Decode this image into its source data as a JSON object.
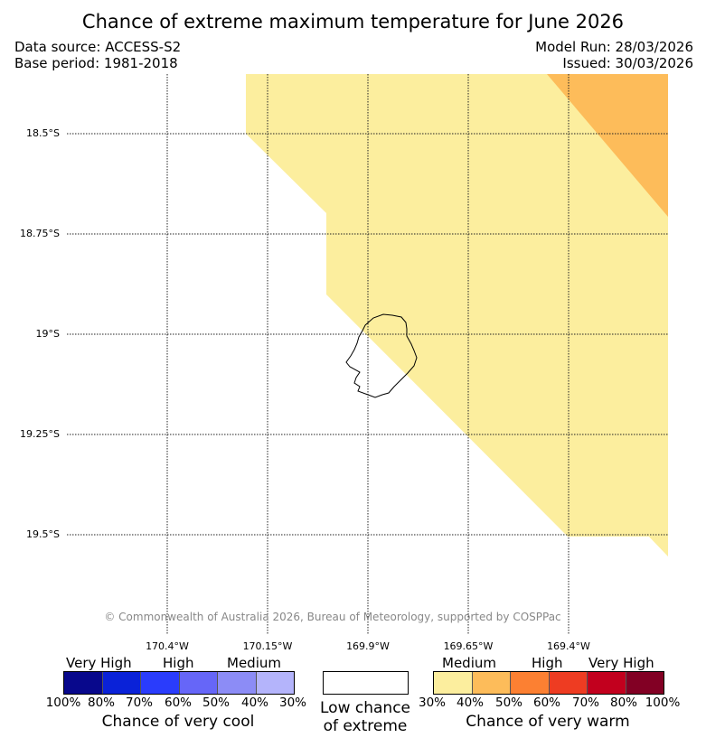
{
  "title": "Chance of extreme maximum temperature for June 2026",
  "data_source": "Data source: ACCESS-S2",
  "base_period": "Base period: 1981-2018",
  "model_run": "Model Run: 28/03/2026",
  "issued": "Issued: 30/03/2026",
  "map": {
    "lat_labels": [
      "18.5°S",
      "18.75°S",
      "19°S",
      "19.25°S",
      "19.5°S"
    ],
    "lon_labels": [
      "170.4°W",
      "170.15°W",
      "169.9°W",
      "169.65°W",
      "169.4°W"
    ],
    "copyright": "© Commonwealth of Australia 2026, Bureau of Meteorology, supported by COSPPac",
    "colors": {
      "warm_medium_30_40": "#fcee9e",
      "warm_medium_40_50": "#fdbc5a"
    }
  },
  "legend": {
    "cool": {
      "levels": [
        "Very High",
        "High",
        "Medium"
      ],
      "ticks": [
        "100%",
        "80%",
        "70%",
        "60%",
        "50%",
        "40%",
        "30%"
      ],
      "colors": [
        "#08088c",
        "#0a22d8",
        "#2a3cfc",
        "#6666f8",
        "#8c8cf6",
        "#b4b4fb"
      ],
      "caption": "Chance of very cool"
    },
    "neutral": {
      "color": "#ffffff",
      "caption_line1": "Low chance",
      "caption_line2": "of extreme"
    },
    "warm": {
      "levels": [
        "Medium",
        "High",
        "Very High"
      ],
      "ticks": [
        "30%",
        "40%",
        "50%",
        "60%",
        "70%",
        "80%",
        "100%"
      ],
      "colors": [
        "#fcee9e",
        "#fdbc5a",
        "#fc8032",
        "#ee3c22",
        "#c2001e",
        "#820024"
      ],
      "caption": "Chance of very warm"
    }
  }
}
